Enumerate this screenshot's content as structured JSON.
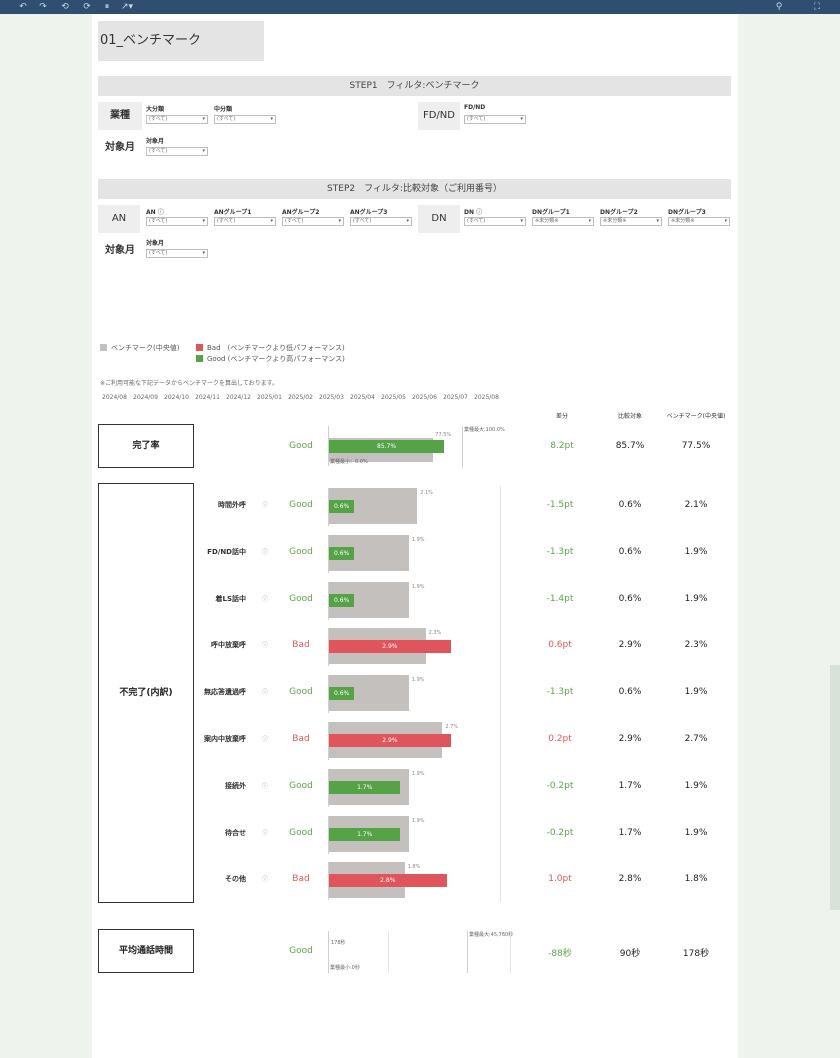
{
  "title": "01_ベンチマーク",
  "step1": {
    "header": "STEP1　フィルタ:ベンチマーク",
    "industry_label": "業種",
    "major_caption": "大分類",
    "major_value": "(すべて)",
    "middle_caption": "中分類",
    "middle_value": "(すべて)",
    "fdnd_label": "FD/ND",
    "fdnd_caption": "FD/ND",
    "fdnd_value": "(すべて)",
    "month_label": "対象月",
    "month_caption": "対象月",
    "month_value": "(すべて)"
  },
  "step2": {
    "header": "STEP2　フィルタ:比較対象（ご利用番号）",
    "an_label": "AN",
    "an_caption": "AN",
    "an_value": "(すべて)",
    "ang1_caption": "ANグループ1",
    "ang1_value": "(すべて)",
    "ang2_caption": "ANグループ2",
    "ang2_value": "(すべて)",
    "ang3_caption": "ANグループ3",
    "ang3_value": "(すべて)",
    "dn_label": "DN",
    "dn_caption": "DN",
    "dn_value": "(すべて)",
    "dng1_caption": "DNグループ1",
    "dng1_value": "※未分類※",
    "dng2_caption": "DNグループ2",
    "dng2_value": "※未分類※",
    "dng3_caption": "DNグループ3",
    "dng3_value": "※未分類※",
    "month_label": "対象月",
    "month_caption": "対象月",
    "month_value": "(すべて)"
  },
  "legend": {
    "benchmark": "ベンチマーク(中央値)",
    "bad": "Bad　(ベンチマークより低パフォーマンス)",
    "good": "Good (ベンチマークより高パフォーマンス)"
  },
  "colors": {
    "benchmark": "#c4c0be",
    "bad": "#e0555b",
    "good": "#55a346"
  },
  "note": "※ご利用可能な下記データからベンチマークを算出しております。",
  "months": [
    "2024/08",
    "2024/09",
    "2024/10",
    "2024/11",
    "2024/12",
    "2025/01",
    "2025/02",
    "2025/03",
    "2025/04",
    "2025/05",
    "2025/06",
    "2025/07",
    "2025/08"
  ],
  "columns": {
    "diff": "差分",
    "compare": "比較対象",
    "benchmark": "ベンチマーク(中央値)"
  },
  "completion": {
    "label": "完了率",
    "status": "Good",
    "compare_bar": "85.7%",
    "bench_bar": "77.5%",
    "max_label": "業種最大:100.0%",
    "min_label": "業種最小：0.0%",
    "diff": "8.2pt",
    "compare": "85.7%",
    "benchmark": "77.5%",
    "compare_value": 85.7,
    "bench_value": 77.5
  },
  "incomplete": {
    "label": "不完了(内訳)",
    "rows": [
      {
        "name": "時間外呼",
        "status": "Good",
        "cmp": "0.6%",
        "bench": "2.1%",
        "diff": "-1.5pt",
        "compare": "0.6%",
        "benchmark": "2.1%",
        "cmp_v": 0.6,
        "bench_v": 2.1
      },
      {
        "name": "FD/ND話中",
        "status": "Good",
        "cmp": "0.6%",
        "bench": "1.9%",
        "diff": "-1.3pt",
        "compare": "0.6%",
        "benchmark": "1.9%",
        "cmp_v": 0.6,
        "bench_v": 1.9
      },
      {
        "name": "着LS話中",
        "status": "Good",
        "cmp": "0.6%",
        "bench": "1.9%",
        "diff": "-1.4pt",
        "compare": "0.6%",
        "benchmark": "1.9%",
        "cmp_v": 0.6,
        "bench_v": 1.9
      },
      {
        "name": "呼中放棄呼",
        "status": "Bad",
        "cmp": "2.9%",
        "bench": "2.3%",
        "diff": "0.6pt",
        "compare": "2.9%",
        "benchmark": "2.3%",
        "cmp_v": 2.9,
        "bench_v": 2.3
      },
      {
        "name": "無応答遺過呼",
        "status": "Good",
        "cmp": "0.6%",
        "bench": "1.9%",
        "diff": "-1.3pt",
        "compare": "0.6%",
        "benchmark": "1.9%",
        "cmp_v": 0.6,
        "bench_v": 1.9
      },
      {
        "name": "案内中放棄呼",
        "status": "Bad",
        "cmp": "2.9%",
        "bench": "2.7%",
        "diff": "0.2pt",
        "compare": "2.9%",
        "benchmark": "2.7%",
        "cmp_v": 2.9,
        "bench_v": 2.7
      },
      {
        "name": "接続外",
        "status": "Good",
        "cmp": "1.7%",
        "bench": "1.9%",
        "diff": "-0.2pt",
        "compare": "1.7%",
        "benchmark": "1.9%",
        "cmp_v": 1.7,
        "bench_v": 1.9
      },
      {
        "name": "待合せ",
        "status": "Good",
        "cmp": "1.7%",
        "bench": "1.9%",
        "diff": "-0.2pt",
        "compare": "1.7%",
        "benchmark": "1.9%",
        "cmp_v": 1.7,
        "bench_v": 1.9
      },
      {
        "name": "その他",
        "status": "Bad",
        "cmp": "2.8%",
        "bench": "1.8%",
        "diff": "1.0pt",
        "compare": "2.8%",
        "benchmark": "1.8%",
        "cmp_v": 2.8,
        "bench_v": 1.8
      }
    ]
  },
  "avg_call": {
    "label": "平均通話時間",
    "status": "Good",
    "bench_bar": "178秒",
    "max_label": "業種最大:45,760秒",
    "min_label": "業種最小:0秒",
    "diff": "-88秒",
    "compare": "90秒",
    "benchmark": "178秒"
  }
}
